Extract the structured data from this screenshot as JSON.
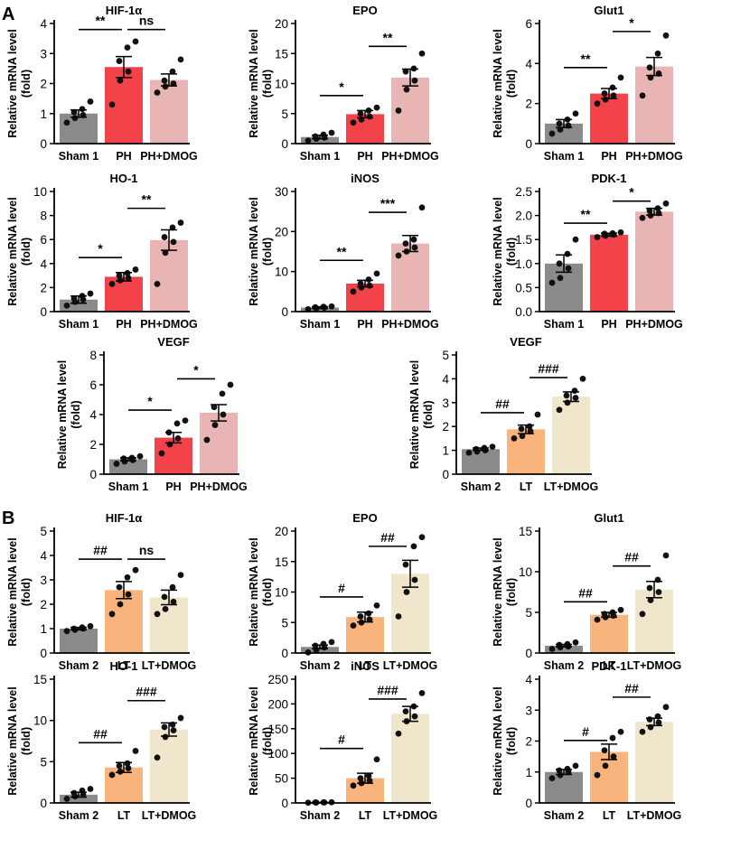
{
  "panel_labels": [
    "A",
    "B"
  ],
  "colors": {
    "sham": "#8a8a8a",
    "ph": "#f2434a",
    "ph_dmog": "#e8b4b4",
    "lt": "#f9b47d",
    "lt_dmog": "#efe6cc",
    "axis": "#000000"
  },
  "chart_data": [
    {
      "type": "bar",
      "panel": "A",
      "title": "HIF-1α",
      "ylabel": "Relative mRNA level",
      "ylabel2": "(fold)",
      "categories": [
        "Sham 1",
        "PH",
        "PH+DMOG"
      ],
      "values": [
        1.0,
        2.55,
        2.12
      ],
      "errors": [
        0.12,
        0.35,
        0.2
      ],
      "points": [
        [
          0.7,
          0.85,
          0.95,
          1.05,
          1.15,
          1.4
        ],
        [
          1.3,
          2.1,
          2.4,
          2.75,
          3.2,
          3.4
        ],
        [
          1.7,
          1.9,
          2.0,
          2.1,
          2.4,
          2.8
        ]
      ],
      "ylim": [
        0,
        4
      ],
      "yticks": [
        0,
        1,
        2,
        3,
        4
      ],
      "palette": [
        "sham",
        "ph",
        "ph_dmog"
      ],
      "sig": [
        {
          "from": 0,
          "to": 1,
          "label": "**",
          "y": 3.8
        },
        {
          "from": 1,
          "to": 2,
          "label": "ns",
          "y": 3.8
        }
      ]
    },
    {
      "type": "bar",
      "panel": "A",
      "title": "EPO",
      "ylabel": "Relative mRNA level",
      "ylabel2": "(fold)",
      "categories": [
        "Sham 1",
        "PH",
        "PH+DMOG"
      ],
      "values": [
        1.1,
        4.9,
        11.0
      ],
      "errors": [
        0.3,
        0.6,
        1.4
      ],
      "points": [
        [
          0.5,
          0.8,
          1.0,
          1.2,
          1.5,
          1.8
        ],
        [
          3.5,
          4.0,
          4.5,
          5.0,
          5.5,
          6.0
        ],
        [
          5.5,
          9.0,
          10.5,
          12.0,
          12.5,
          15.0
        ]
      ],
      "ylim": [
        0,
        20
      ],
      "yticks": [
        0,
        5,
        10,
        15,
        20
      ],
      "palette": [
        "sham",
        "ph",
        "ph_dmog"
      ],
      "sig": [
        {
          "from": 0,
          "to": 1,
          "label": "*",
          "y": 8.0
        },
        {
          "from": 1,
          "to": 2,
          "label": "**",
          "y": 16.2
        }
      ]
    },
    {
      "type": "bar",
      "panel": "A",
      "title": "Glut1",
      "ylabel": "Relative mRNA level",
      "ylabel2": "(fold)",
      "categories": [
        "Sham 1",
        "PH",
        "PH+DMOG"
      ],
      "values": [
        1.0,
        2.5,
        3.85
      ],
      "errors": [
        0.2,
        0.25,
        0.45
      ],
      "points": [
        [
          0.5,
          0.7,
          0.9,
          1.0,
          1.2,
          1.5
        ],
        [
          2.0,
          2.2,
          2.4,
          2.5,
          2.8,
          3.3
        ],
        [
          2.4,
          3.3,
          3.5,
          3.8,
          4.5,
          5.4
        ]
      ],
      "ylim": [
        0,
        6
      ],
      "yticks": [
        0,
        2,
        4,
        6
      ],
      "palette": [
        "sham",
        "ph",
        "ph_dmog"
      ],
      "sig": [
        {
          "from": 0,
          "to": 1,
          "label": "**",
          "y": 3.8
        },
        {
          "from": 1,
          "to": 2,
          "label": "*",
          "y": 5.6
        }
      ]
    },
    {
      "type": "bar",
      "panel": "A",
      "title": "HO-1",
      "ylabel": "Relative mRNA level",
      "ylabel2": "(fold)",
      "categories": [
        "Sham 1",
        "PH",
        "PH+DMOG"
      ],
      "values": [
        1.0,
        2.9,
        5.95
      ],
      "errors": [
        0.3,
        0.35,
        0.85
      ],
      "points": [
        [
          0.5,
          0.8,
          1.0,
          1.1,
          1.3,
          1.5
        ],
        [
          2.3,
          2.6,
          2.8,
          3.0,
          3.2,
          3.5
        ],
        [
          2.3,
          4.9,
          5.8,
          6.2,
          7.0,
          7.4
        ]
      ],
      "ylim": [
        0,
        10
      ],
      "yticks": [
        0,
        2,
        4,
        6,
        8,
        10
      ],
      "palette": [
        "sham",
        "ph",
        "ph_dmog"
      ],
      "sig": [
        {
          "from": 0,
          "to": 1,
          "label": "*",
          "y": 4.5
        },
        {
          "from": 1,
          "to": 2,
          "label": "**",
          "y": 8.6
        }
      ]
    },
    {
      "type": "bar",
      "panel": "A",
      "title": "iNOS",
      "ylabel": "Relative mRNA level",
      "ylabel2": "(fold)",
      "categories": [
        "Sham 1",
        "PH",
        "PH+DMOG"
      ],
      "values": [
        1.0,
        7.0,
        17.0
      ],
      "errors": [
        0.2,
        0.8,
        2.0
      ],
      "points": [
        [
          0.6,
          0.8,
          1.0,
          1.1,
          1.2,
          1.3
        ],
        [
          5.0,
          6.0,
          6.5,
          7.0,
          8.0,
          9.5
        ],
        [
          14.0,
          15.0,
          16.0,
          17.0,
          18.0,
          26.0
        ]
      ],
      "ylim": [
        0,
        30
      ],
      "yticks": [
        0,
        10,
        20,
        30
      ],
      "palette": [
        "sham",
        "ph",
        "ph_dmog"
      ],
      "sig": [
        {
          "from": 0,
          "to": 1,
          "label": "**",
          "y": 12.8
        },
        {
          "from": 1,
          "to": 2,
          "label": "***",
          "y": 24.8
        }
      ]
    },
    {
      "type": "bar",
      "panel": "A",
      "title": "PDK-1",
      "ylabel": "Relative mRNA level",
      "ylabel2": "(fold)",
      "categories": [
        "Sham 1",
        "PH",
        "PH+DMOG"
      ],
      "values": [
        1.0,
        1.6,
        2.08
      ],
      "errors": [
        0.18,
        0.03,
        0.07
      ],
      "points": [
        [
          0.6,
          0.7,
          0.9,
          1.0,
          1.2,
          1.5
        ],
        [
          1.55,
          1.58,
          1.6,
          1.62,
          1.63,
          1.65
        ],
        [
          1.95,
          2.0,
          2.05,
          2.1,
          2.15,
          2.25
        ]
      ],
      "ylim": [
        0,
        2.5
      ],
      "yticks": [
        0,
        0.5,
        1.0,
        1.5,
        2.0,
        2.5
      ],
      "tickdec": 1,
      "palette": [
        "sham",
        "ph",
        "ph_dmog"
      ],
      "sig": [
        {
          "from": 0,
          "to": 1,
          "label": "**",
          "y": 1.84
        },
        {
          "from": 1,
          "to": 2,
          "label": "*",
          "y": 2.3
        }
      ]
    },
    {
      "type": "bar",
      "panel": "A",
      "title": "VEGF",
      "ylabel": "Relative mRNA level",
      "ylabel2": "(fold)",
      "categories": [
        "Sham 1",
        "PH",
        "PH+DMOG"
      ],
      "values": [
        1.0,
        2.45,
        4.12
      ],
      "errors": [
        0.1,
        0.35,
        0.55
      ],
      "points": [
        [
          0.7,
          0.85,
          0.95,
          1.05,
          1.1,
          1.2
        ],
        [
          1.4,
          2.0,
          2.4,
          2.8,
          3.4,
          3.6
        ],
        [
          2.3,
          3.3,
          4.0,
          4.5,
          5.4,
          6.0
        ]
      ],
      "ylim": [
        0,
        8
      ],
      "yticks": [
        0,
        2,
        4,
        6,
        8
      ],
      "palette": [
        "sham",
        "ph",
        "ph_dmog"
      ],
      "sig": [
        {
          "from": 0,
          "to": 1,
          "label": "*",
          "y": 4.3
        },
        {
          "from": 1,
          "to": 2,
          "label": "*",
          "y": 6.4
        }
      ]
    },
    {
      "type": "bar",
      "panel": "A",
      "title": "VEGF",
      "ylabel": "Relative mRNA level",
      "ylabel2": "(fold)",
      "categories": [
        "Sham 2",
        "LT",
        "LT+DMOG"
      ],
      "values": [
        1.05,
        1.88,
        3.25
      ],
      "errors": [
        0.05,
        0.18,
        0.2
      ],
      "points": [
        [
          0.9,
          0.95,
          1.0,
          1.05,
          1.1,
          1.15
        ],
        [
          1.5,
          1.6,
          1.8,
          1.9,
          2.0,
          2.5
        ],
        [
          2.7,
          3.0,
          3.2,
          3.3,
          3.5,
          4.0
        ]
      ],
      "ylim": [
        0,
        5
      ],
      "yticks": [
        0,
        1,
        2,
        3,
        4,
        5
      ],
      "palette": [
        "sham",
        "lt",
        "lt_dmog"
      ],
      "sig": [
        {
          "from": 0,
          "to": 1,
          "label": "##",
          "y": 2.58
        },
        {
          "from": 1,
          "to": 2,
          "label": "###",
          "y": 4.05
        }
      ]
    },
    {
      "type": "bar",
      "panel": "B",
      "title": "HIF-1α",
      "ylabel": "Relative mRNA level",
      "ylabel2": "(fold)",
      "categories": [
        "Sham 2",
        "LT",
        "LT+DMOG"
      ],
      "values": [
        1.0,
        2.58,
        2.28
      ],
      "errors": [
        0.05,
        0.35,
        0.3
      ],
      "points": [
        [
          0.9,
          0.95,
          1.0,
          1.0,
          1.05,
          1.1
        ],
        [
          1.6,
          2.0,
          2.4,
          2.7,
          3.1,
          3.4
        ],
        [
          1.6,
          1.8,
          2.1,
          2.3,
          2.7,
          3.2
        ]
      ],
      "ylim": [
        0,
        5
      ],
      "yticks": [
        0,
        1,
        2,
        3,
        4,
        5
      ],
      "palette": [
        "sham",
        "lt",
        "lt_dmog"
      ],
      "sig": [
        {
          "from": 0,
          "to": 1,
          "label": "##",
          "y": 3.85
        },
        {
          "from": 1,
          "to": 2,
          "label": "ns",
          "y": 3.85
        }
      ]
    },
    {
      "type": "bar",
      "panel": "B",
      "title": "EPO",
      "ylabel": "Relative mRNA level",
      "ylabel2": "(fold)",
      "categories": [
        "Sham 2",
        "LT",
        "LT+DMOG"
      ],
      "values": [
        1.0,
        5.9,
        13.0
      ],
      "errors": [
        0.3,
        0.8,
        2.2
      ],
      "points": [
        [
          0.1,
          0.5,
          0.9,
          1.2,
          1.5,
          1.8
        ],
        [
          4.5,
          5.0,
          5.5,
          6.0,
          6.5,
          7.8
        ],
        [
          6.0,
          10.0,
          12.0,
          14.5,
          17.5,
          19.0
        ]
      ],
      "ylim": [
        0,
        20
      ],
      "yticks": [
        0,
        5,
        10,
        15,
        20
      ],
      "palette": [
        "sham",
        "lt",
        "lt_dmog"
      ],
      "sig": [
        {
          "from": 0,
          "to": 1,
          "label": "#",
          "y": 9.2
        },
        {
          "from": 1,
          "to": 2,
          "label": "##",
          "y": 17.5
        }
      ]
    },
    {
      "type": "bar",
      "panel": "B",
      "title": "Glut1",
      "ylabel": "Relative mRNA level",
      "ylabel2": "(fold)",
      "categories": [
        "Sham 2",
        "LT",
        "LT+DMOG"
      ],
      "values": [
        0.9,
        4.7,
        7.8
      ],
      "errors": [
        0.15,
        0.3,
        1.0
      ],
      "points": [
        [
          0.5,
          0.7,
          0.8,
          1.0,
          1.1,
          1.3
        ],
        [
          4.1,
          4.4,
          4.6,
          4.8,
          5.0,
          5.3
        ],
        [
          4.8,
          6.5,
          7.5,
          8.0,
          9.0,
          12.0
        ]
      ],
      "ylim": [
        0,
        15
      ],
      "yticks": [
        0,
        5,
        10,
        15
      ],
      "palette": [
        "sham",
        "lt",
        "lt_dmog"
      ],
      "sig": [
        {
          "from": 0,
          "to": 1,
          "label": "##",
          "y": 6.3
        },
        {
          "from": 1,
          "to": 2,
          "label": "##",
          "y": 10.7
        }
      ]
    },
    {
      "type": "bar",
      "panel": "B",
      "title": "HO-1",
      "ylabel": "Relative mRNA level",
      "ylabel2": "(fold)",
      "categories": [
        "Sham 2",
        "LT",
        "LT+DMOG"
      ],
      "values": [
        1.0,
        4.3,
        8.9
      ],
      "errors": [
        0.3,
        0.6,
        0.8
      ],
      "points": [
        [
          0.5,
          0.8,
          1.0,
          1.2,
          1.5,
          1.7
        ],
        [
          3.4,
          3.8,
          4.2,
          4.5,
          4.8,
          6.3
        ],
        [
          5.5,
          8.0,
          8.8,
          9.2,
          9.5,
          10.3
        ]
      ],
      "ylim": [
        0,
        15
      ],
      "yticks": [
        0,
        5,
        10,
        15
      ],
      "palette": [
        "sham",
        "lt",
        "lt_dmog"
      ],
      "sig": [
        {
          "from": 0,
          "to": 1,
          "label": "##",
          "y": 7.3
        },
        {
          "from": 1,
          "to": 2,
          "label": "###",
          "y": 12.4
        }
      ]
    },
    {
      "type": "bar",
      "panel": "B",
      "title": "iNOS",
      "ylabel": "Relative mRNA level",
      "ylabel2": "(fold)",
      "categories": [
        "Sham 2",
        "LT",
        "LT+DMOG"
      ],
      "values": [
        1.0,
        50.0,
        180.0
      ],
      "errors": [
        0.3,
        10.0,
        15.0
      ],
      "points": [
        [
          0.5,
          0.8,
          1.0,
          1.1,
          1.2,
          1.4
        ],
        [
          35.0,
          40.0,
          45.0,
          50.0,
          55.0,
          88.0
        ],
        [
          140.0,
          165.0,
          175.0,
          185.0,
          195.0,
          222.0
        ]
      ],
      "ylim": [
        0,
        250
      ],
      "yticks": [
        0,
        50,
        100,
        150,
        200,
        250
      ],
      "palette": [
        "sham",
        "lt",
        "lt_dmog"
      ],
      "sig": [
        {
          "from": 0,
          "to": 1,
          "label": "#",
          "y": 110.0
        },
        {
          "from": 1,
          "to": 2,
          "label": "###",
          "y": 210.0
        }
      ]
    },
    {
      "type": "bar",
      "panel": "B",
      "title": "PDK-1",
      "ylabel": "Relative mRNA level",
      "ylabel2": "(fold)",
      "categories": [
        "Sham 2",
        "LT",
        "LT+DMOG"
      ],
      "values": [
        1.0,
        1.65,
        2.62
      ],
      "errors": [
        0.08,
        0.25,
        0.12
      ],
      "points": [
        [
          0.8,
          0.9,
          1.0,
          1.05,
          1.1,
          1.2
        ],
        [
          0.9,
          1.2,
          1.5,
          1.7,
          2.1,
          2.3
        ],
        [
          2.3,
          2.45,
          2.6,
          2.7,
          2.8,
          3.1
        ]
      ],
      "ylim": [
        0,
        4
      ],
      "yticks": [
        0,
        1,
        2,
        3,
        4
      ],
      "palette": [
        "sham",
        "lt",
        "lt_dmog"
      ],
      "sig": [
        {
          "from": 0,
          "to": 1,
          "label": "#",
          "y": 2.02
        },
        {
          "from": 1,
          "to": 2,
          "label": "##",
          "y": 3.42
        }
      ]
    }
  ]
}
